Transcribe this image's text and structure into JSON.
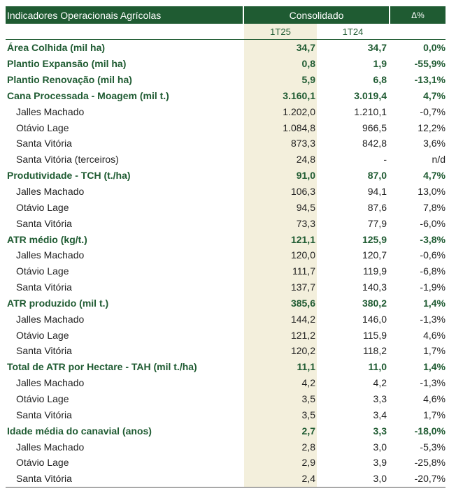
{
  "header": {
    "title": "Indicadores Operacionais Agrícolas",
    "consolidado": "Consolidado",
    "delta": "Δ%",
    "period_current": "1T25",
    "period_previous": "1T24"
  },
  "rows": [
    {
      "type": "main",
      "label": "Área Colhida (mil ha)",
      "cur": "34,7",
      "prev": "34,7",
      "delta": "0,0%"
    },
    {
      "type": "main",
      "label": "Plantio Expansão (mil ha)",
      "cur": "0,8",
      "prev": "1,9",
      "delta": "-55,9%"
    },
    {
      "type": "main",
      "label": "Plantio Renovação (mil ha)",
      "cur": "5,9",
      "prev": "6,8",
      "delta": "-13,1%"
    },
    {
      "type": "main",
      "label": "Cana Processada - Moagem (mil t.)",
      "cur": "3.160,1",
      "prev": "3.019,4",
      "delta": "4,7%"
    },
    {
      "type": "sub",
      "label": "Jalles Machado",
      "cur": "1.202,0",
      "prev": "1.210,1",
      "delta": "-0,7%"
    },
    {
      "type": "sub",
      "label": "Otávio Lage",
      "cur": "1.084,8",
      "prev": "966,5",
      "delta": "12,2%"
    },
    {
      "type": "sub",
      "label": "Santa Vitória",
      "cur": "873,3",
      "prev": "842,8",
      "delta": "3,6%"
    },
    {
      "type": "sub",
      "label": "Santa Vitória (terceiros)",
      "cur": "24,8",
      "prev": "-",
      "delta": "n/d"
    },
    {
      "type": "main",
      "label": "Produtividade - TCH (t./ha)",
      "cur": "91,0",
      "prev": "87,0",
      "delta": "4,7%"
    },
    {
      "type": "sub",
      "label": "Jalles Machado",
      "cur": "106,3",
      "prev": "94,1",
      "delta": "13,0%"
    },
    {
      "type": "sub",
      "label": "Otávio Lage",
      "cur": "94,5",
      "prev": "87,6",
      "delta": "7,8%"
    },
    {
      "type": "sub",
      "label": "Santa Vitória",
      "cur": "73,3",
      "prev": "77,9",
      "delta": "-6,0%"
    },
    {
      "type": "main",
      "label": "ATR médio (kg/t.)",
      "cur": "121,1",
      "prev": "125,9",
      "delta": "-3,8%"
    },
    {
      "type": "sub",
      "label": "Jalles Machado",
      "cur": "120,0",
      "prev": "120,7",
      "delta": "-0,6%"
    },
    {
      "type": "sub",
      "label": "Otávio Lage",
      "cur": "111,7",
      "prev": "119,9",
      "delta": "-6,8%"
    },
    {
      "type": "sub",
      "label": "Santa Vitória",
      "cur": "137,7",
      "prev": "140,3",
      "delta": "-1,9%"
    },
    {
      "type": "main",
      "label": "ATR produzido (mil t.)",
      "cur": "385,6",
      "prev": "380,2",
      "delta": "1,4%"
    },
    {
      "type": "sub",
      "label": "Jalles Machado",
      "cur": "144,2",
      "prev": "146,0",
      "delta": "-1,3%"
    },
    {
      "type": "sub",
      "label": "Otávio Lage",
      "cur": "121,2",
      "prev": "115,9",
      "delta": "4,6%"
    },
    {
      "type": "sub",
      "label": "Santa Vitória",
      "cur": "120,2",
      "prev": "118,2",
      "delta": "1,7%"
    },
    {
      "type": "main",
      "label": "Total de ATR por Hectare - TAH (mil t./ha)",
      "cur": "11,1",
      "prev": "11,0",
      "delta": "1,4%"
    },
    {
      "type": "sub",
      "label": "Jalles Machado",
      "cur": "4,2",
      "prev": "4,2",
      "delta": "-1,3%"
    },
    {
      "type": "sub",
      "label": "Otávio Lage",
      "cur": "3,5",
      "prev": "3,3",
      "delta": "4,6%"
    },
    {
      "type": "sub",
      "label": "Santa Vitória",
      "cur": "3,5",
      "prev": "3,4",
      "delta": "1,7%"
    },
    {
      "type": "main",
      "label": "Idade média do canavial (anos)",
      "cur": "2,7",
      "prev": "3,3",
      "delta": "-18,0%"
    },
    {
      "type": "sub",
      "label": "Jalles Machado",
      "cur": "2,8",
      "prev": "3,0",
      "delta": "-5,3%"
    },
    {
      "type": "sub",
      "label": "Otávio Lage",
      "cur": "2,9",
      "prev": "3,9",
      "delta": "-25,8%"
    },
    {
      "type": "sub",
      "label": "Santa Vitória",
      "cur": "2,4",
      "prev": "3,0",
      "delta": "-20,7%"
    }
  ]
}
